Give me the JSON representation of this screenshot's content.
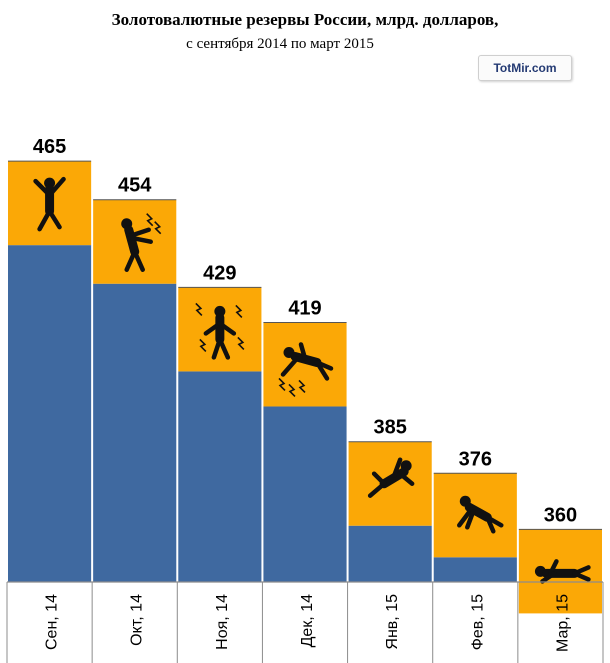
{
  "title": "Золотовалютные резервы России, млрд. долларов,",
  "subtitle": "с сентября 2014 по март 2015",
  "watermark": "TotMir.com",
  "colors": {
    "bar": "#3f69a0",
    "cap": "#fba806",
    "figure": "#111111",
    "axis": "#8c8c8c"
  },
  "chart_data": {
    "type": "bar",
    "title": "Золотовалютные резервы России, млрд. долларов,",
    "subtitle": "с сентября 2014 по март 2015",
    "categories": [
      "Сен, 14",
      "Окт, 14",
      "Ноя, 14",
      "Дек, 14",
      "Янв, 15",
      "Фев, 15",
      "Мар, 15"
    ],
    "values": [
      465,
      454,
      429,
      419,
      385,
      376,
      360
    ],
    "data_labels": [
      "465",
      "454",
      "429",
      "419",
      "385",
      "376",
      "360"
    ],
    "figure_icons": [
      "jumping-man-icon",
      "shocked-man-icon",
      "electrocuted-man-icon",
      "falling-man-icon",
      "tumbling-man-icon",
      "crawling-man-icon",
      "lying-man-icon"
    ],
    "ylim": [
      345,
      485
    ],
    "grid": false,
    "legend": "none"
  }
}
